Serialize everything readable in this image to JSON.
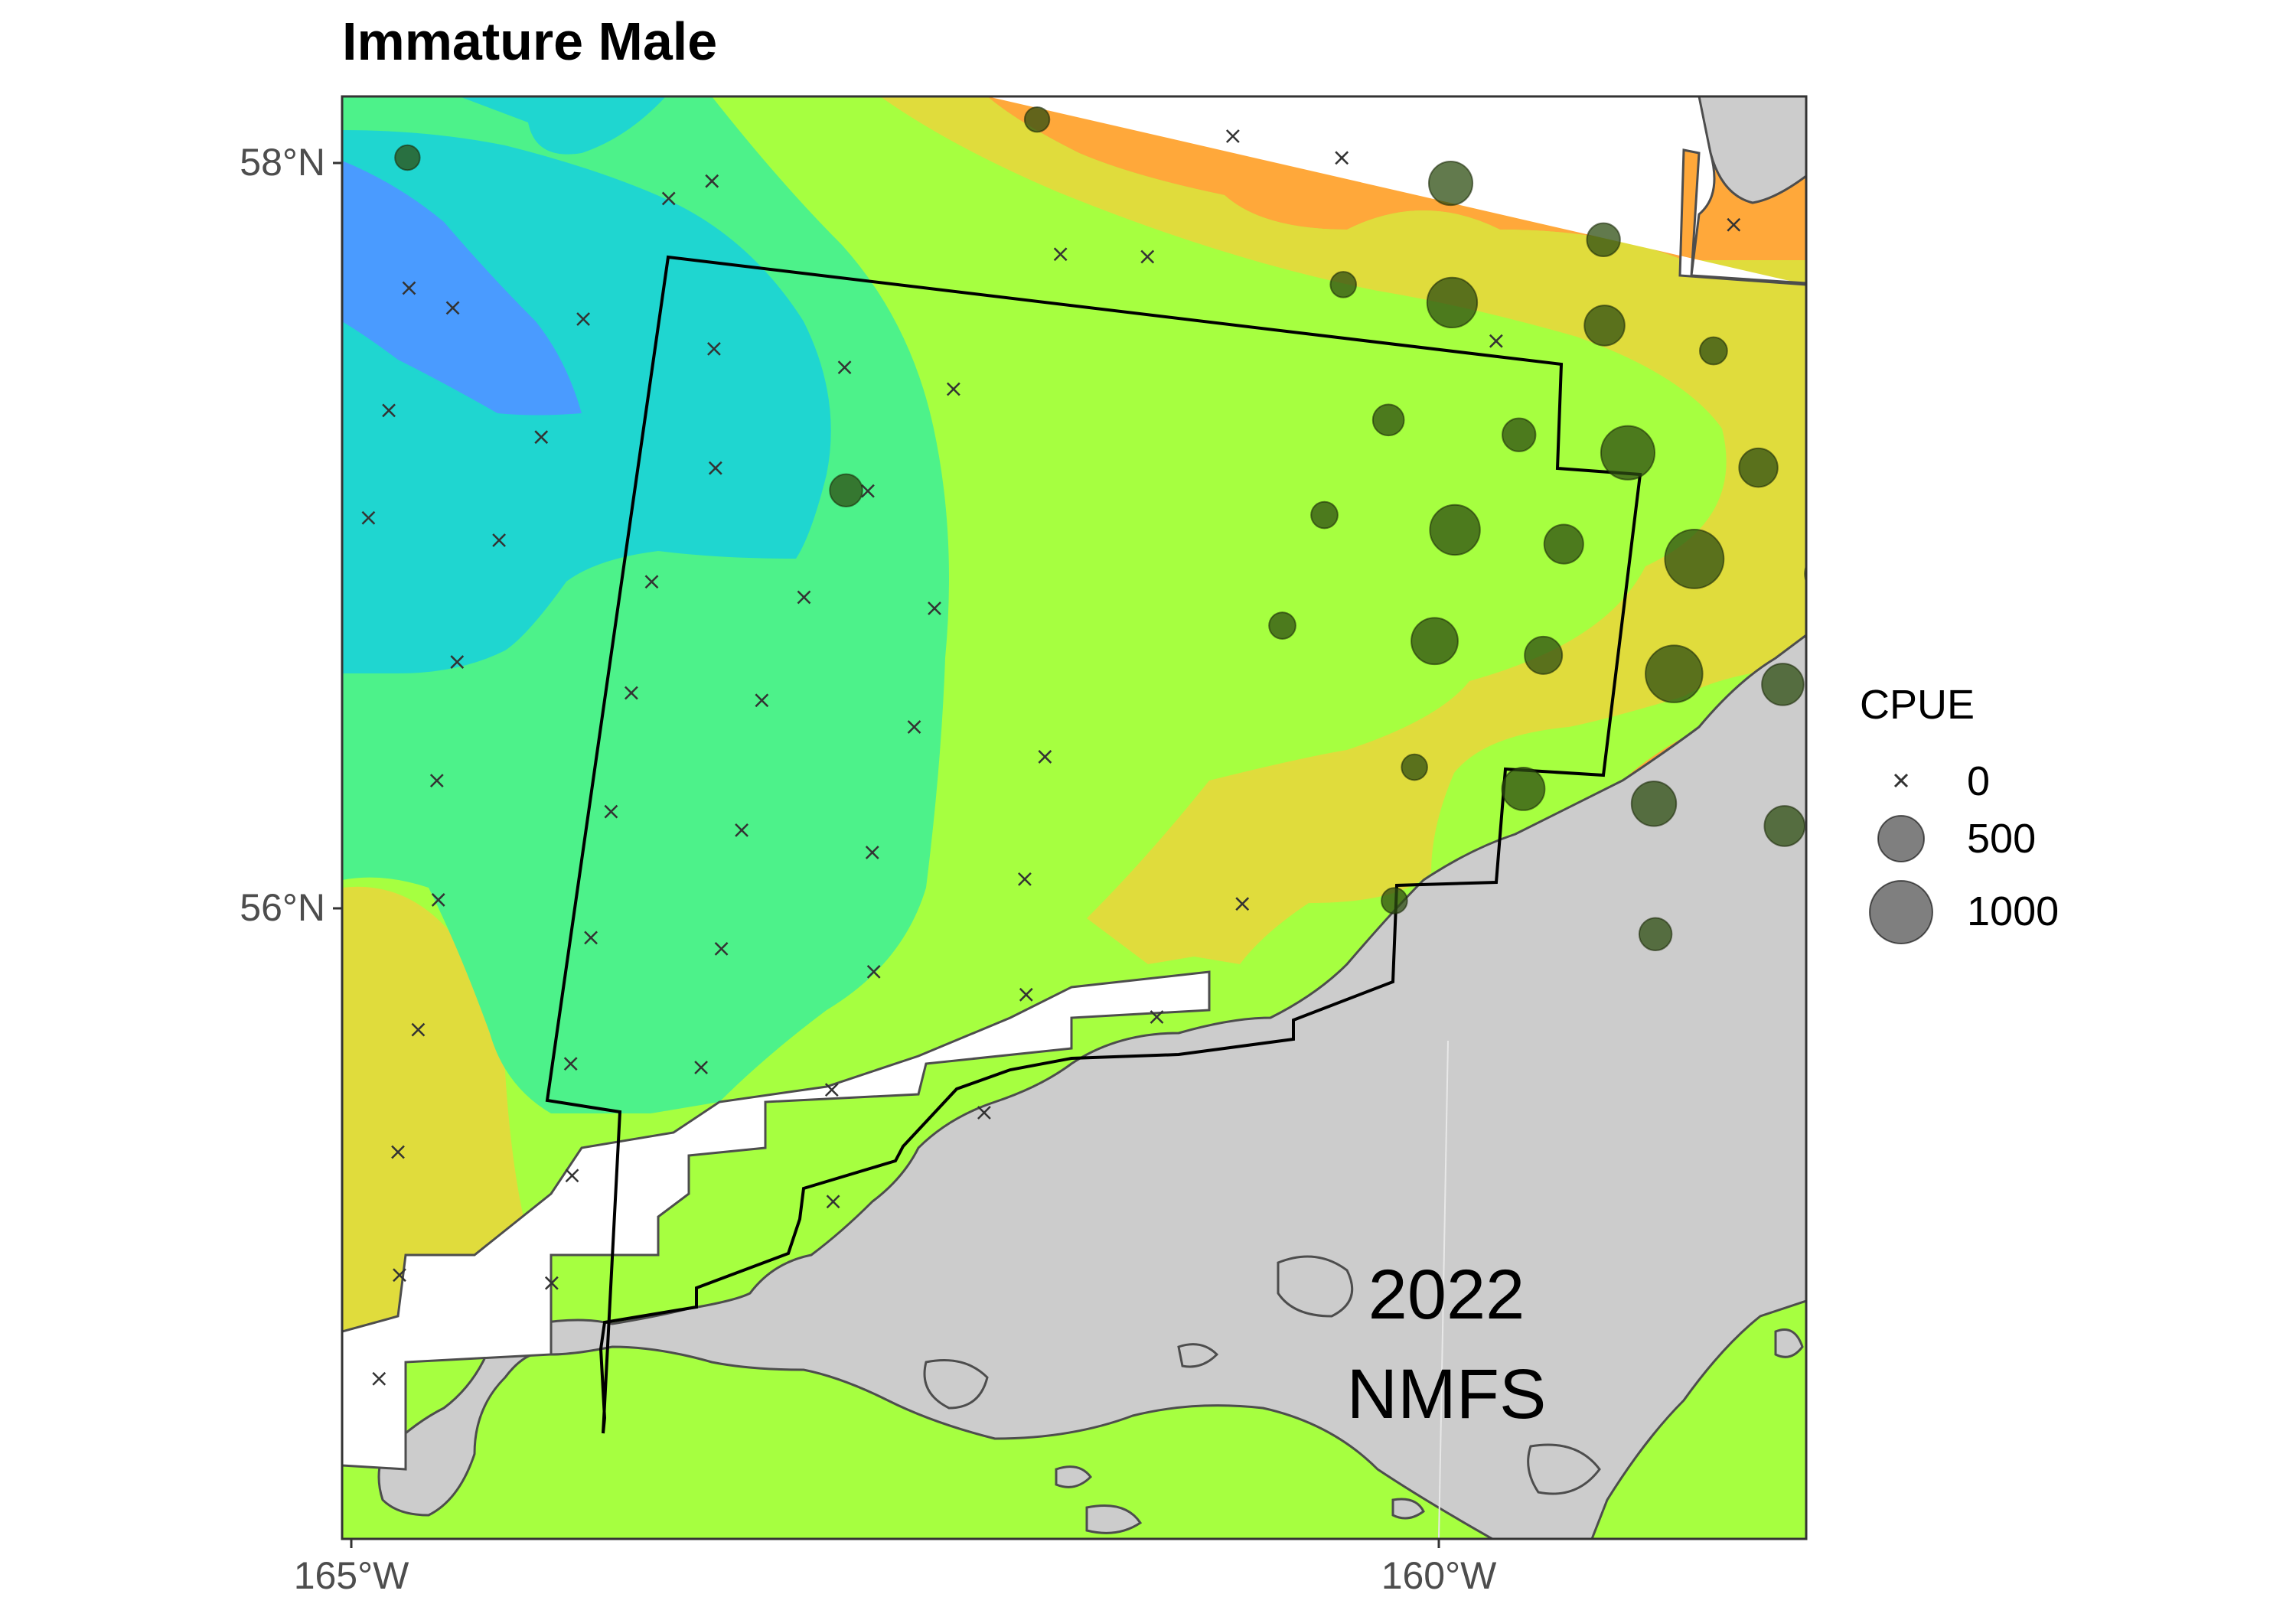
{
  "title": "Immature Male",
  "axes": {
    "y_ticks": [
      "58°N",
      "56°N"
    ],
    "x_ticks": [
      "165°W",
      "160°W"
    ]
  },
  "legend": {
    "title": "CPUE",
    "entries": [
      "0",
      "500",
      "1000"
    ]
  },
  "annotation": {
    "year": "2022",
    "agency": "NMFS"
  },
  "colors": {
    "land": "#cccccc",
    "coast": "#4d4d4d",
    "survey_boundary": "#000000",
    "bubble": "#2e4d12",
    "zero_marker": "#333333",
    "blue": "#4a9bff",
    "cyan": "#1fd6d0",
    "aqua_green": "#4df28a",
    "lime": "#a6ff40",
    "yellow": "#e0dc3c",
    "orange": "#ffa83a"
  },
  "map_data": {
    "stations_positive": [
      {
        "lon": -161.8,
        "lat": 58.12,
        "cpue": 120
      },
      {
        "lon": -164.7,
        "lat": 57.97,
        "cpue": 120
      },
      {
        "lon": -159.9,
        "lat": 57.98,
        "cpue": 420
      },
      {
        "lon": -159.2,
        "lat": 57.84,
        "cpue": 230
      },
      {
        "lon": -160.4,
        "lat": 57.7,
        "cpue": 130
      },
      {
        "lon": -159.9,
        "lat": 57.66,
        "cpue": 560
      },
      {
        "lon": -159.2,
        "lat": 57.61,
        "cpue": 350
      },
      {
        "lon": -158.7,
        "lat": 57.55,
        "cpue": 150
      },
      {
        "lon": -160.2,
        "lat": 57.34,
        "cpue": 200
      },
      {
        "lon": -159.6,
        "lat": 57.31,
        "cpue": 230
      },
      {
        "lon": -159.1,
        "lat": 57.27,
        "cpue": 650
      },
      {
        "lon": -158.5,
        "lat": 57.24,
        "cpue": 320
      },
      {
        "lon": -157.6,
        "lat": 57.21,
        "cpue": 300
      },
      {
        "lon": -157.0,
        "lat": 57.18,
        "cpue": 130
      },
      {
        "lon": -162.7,
        "lat": 57.11,
        "cpue": 220
      },
      {
        "lon": -160.5,
        "lat": 57.08,
        "cpue": 140
      },
      {
        "lon": -159.9,
        "lat": 57.05,
        "cpue": 560
      },
      {
        "lon": -159.4,
        "lat": 57.02,
        "cpue": 330
      },
      {
        "lon": -158.8,
        "lat": 56.99,
        "cpue": 790
      },
      {
        "lon": -158.2,
        "lat": 56.96,
        "cpue": 350
      },
      {
        "lon": -157.6,
        "lat": 56.93,
        "cpue": 140
      },
      {
        "lon": -160.7,
        "lat": 56.78,
        "cpue": 140
      },
      {
        "lon": -160.0,
        "lat": 56.75,
        "cpue": 480
      },
      {
        "lon": -159.5,
        "lat": 56.72,
        "cpue": 300
      },
      {
        "lon": -158.9,
        "lat": 56.68,
        "cpue": 740
      },
      {
        "lon": -158.4,
        "lat": 56.66,
        "cpue": 380
      },
      {
        "lon": -157.9,
        "lat": 56.61,
        "cpue": 200
      },
      {
        "lon": -160.1,
        "lat": 56.41,
        "cpue": 130
      },
      {
        "lon": -159.6,
        "lat": 56.36,
        "cpue": 400
      },
      {
        "lon": -159.0,
        "lat": 56.33,
        "cpue": 440
      },
      {
        "lon": -158.4,
        "lat": 56.28,
        "cpue": 350
      },
      {
        "lon": -160.2,
        "lat": 56.05,
        "cpue": 130
      },
      {
        "lon": -159.0,
        "lat": 55.98,
        "cpue": 220
      }
    ],
    "stations_zero": [
      [
        -163.4,
        58.2
      ],
      [
        -160.9,
        58.09
      ],
      [
        -160.4,
        58.04
      ],
      [
        -163.3,
        57.93
      ],
      [
        -163.5,
        57.88
      ],
      [
        -161.7,
        57.76
      ],
      [
        -161.3,
        57.76
      ],
      [
        -158.6,
        57.89
      ],
      [
        -158.0,
        57.84
      ],
      [
        -157.6,
        57.89
      ],
      [
        -164.7,
        57.62
      ],
      [
        -164.5,
        57.57
      ],
      [
        -163.9,
        57.55
      ],
      [
        -163.3,
        57.48
      ],
      [
        -162.7,
        57.44
      ],
      [
        -159.7,
        57.56
      ],
      [
        -158.0,
        57.53
      ],
      [
        -157.4,
        57.49
      ],
      [
        -162.2,
        57.39
      ],
      [
        -164.8,
        57.29
      ],
      [
        -164.1,
        57.23
      ],
      [
        -163.3,
        57.16
      ],
      [
        -162.6,
        57.11
      ],
      [
        -164.9,
        57.0
      ],
      [
        -164.3,
        56.95
      ],
      [
        -163.6,
        56.85
      ],
      [
        -162.9,
        56.82
      ],
      [
        -162.3,
        56.8
      ],
      [
        -157.5,
        56.86
      ],
      [
        -164.5,
        56.62
      ],
      [
        -163.7,
        56.55
      ],
      [
        -163.1,
        56.54
      ],
      [
        -162.4,
        56.48
      ],
      [
        -161.8,
        56.41
      ],
      [
        -157.3,
        56.53
      ],
      [
        -164.6,
        56.3
      ],
      [
        -163.8,
        56.23
      ],
      [
        -163.2,
        56.19
      ],
      [
        -162.6,
        56.14
      ],
      [
        -161.9,
        56.08
      ],
      [
        -160.9,
        56.03
      ],
      [
        -158.0,
        56.25
      ],
      [
        -164.6,
        55.98
      ],
      [
        -163.9,
        55.89
      ],
      [
        -163.3,
        55.87
      ],
      [
        -162.6,
        55.82
      ],
      [
        -161.9,
        55.77
      ],
      [
        -161.3,
        55.72
      ],
      [
        -164.7,
        55.63
      ],
      [
        -164.0,
        55.55
      ],
      [
        -163.4,
        55.55
      ],
      [
        -162.8,
        55.5
      ],
      [
        -162.1,
        55.45
      ],
      [
        -164.8,
        55.3
      ],
      [
        -164.0,
        55.25
      ],
      [
        -162.8,
        55.2
      ],
      [
        -164.8,
        54.97
      ],
      [
        -164.1,
        54.96
      ],
      [
        -164.9,
        54.69
      ]
    ]
  }
}
